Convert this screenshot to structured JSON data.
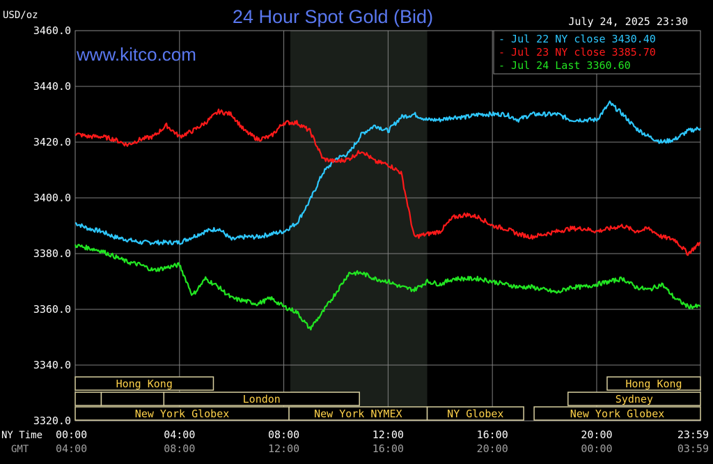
{
  "chart_data": {
    "type": "line",
    "title": "24 Hour Spot Gold (Bid)",
    "unit_label": "USD/oz",
    "watermark": "www.kitco.com",
    "timestamp": "July 24, 2025 23:30",
    "ylim": [
      3320,
      3460
    ],
    "y_ticks": [
      "3460.0",
      "3440.0",
      "3420.0",
      "3400.0",
      "3380.0",
      "3360.0",
      "3340.0",
      "3320.0"
    ],
    "x_tick_label_ny": "NY Time",
    "x_tick_label_gmt": "GMT",
    "x_ticks_ny": [
      "00:00",
      "04:00",
      "08:00",
      "12:00",
      "16:00",
      "20:00",
      "23:59"
    ],
    "x_ticks_gmt": [
      "04:00",
      "08:00",
      "12:00",
      "16:00",
      "20:00",
      "00:00",
      "03:59"
    ],
    "x_tick_hours": [
      0,
      4,
      8,
      12,
      16,
      20,
      23.98
    ],
    "xlim_hours": [
      0,
      23.98
    ],
    "shaded_session_hours": [
      8.25,
      13.5
    ],
    "colors": {
      "background": "#000000",
      "grid": "#808080",
      "title": "#5a78f0",
      "text": "#ffffff",
      "session_fill": "#1a1f1a",
      "session_text": "#ffd24a",
      "jul22": "#2ec8ff",
      "jul23": "#ff1a1a",
      "jul24": "#22e622"
    },
    "legend": {
      "placement": "top-right",
      "entries": [
        {
          "key": "jul22",
          "label": "Jul 22 NY close 3430.40"
        },
        {
          "key": "jul23",
          "label": "Jul 23 NY close 3385.70"
        },
        {
          "key": "jul24",
          "label": "Jul 24 Last 3360.60"
        }
      ]
    },
    "sessions": [
      {
        "label": "Hong Kong",
        "row": 0,
        "start": 0,
        "end": 5.3
      },
      {
        "label": "Hong Kong",
        "row": 0,
        "end": 23.98,
        "start": 20.4
      },
      {
        "label": "",
        "row": 1,
        "start": 0,
        "end": 1.0
      },
      {
        "label": "",
        "row": 1,
        "start": 1.0,
        "end": 3.4
      },
      {
        "label": "London",
        "row": 1,
        "start": 3.4,
        "end": 10.9
      },
      {
        "label": "Sydney",
        "row": 1,
        "start": 18.9,
        "end": 23.98
      },
      {
        "label": "New York Globex",
        "row": 2,
        "start": 0,
        "end": 8.2
      },
      {
        "label": "New York NYMEX",
        "row": 2,
        "start": 8.2,
        "end": 13.5
      },
      {
        "label": "NY Globex",
        "row": 2,
        "start": 13.5,
        "end": 17.2
      },
      {
        "label": "New York Globex",
        "row": 2,
        "start": 17.6,
        "end": 23.98
      }
    ],
    "series": [
      {
        "key": "jul22",
        "x": [
          0,
          0.5,
          1,
          1.5,
          2,
          2.5,
          3,
          3.5,
          4,
          4.5,
          5,
          5.5,
          6,
          6.5,
          7,
          7.5,
          8,
          8.5,
          9,
          9.5,
          10,
          10.5,
          11,
          11.5,
          12,
          12.5,
          13,
          13.5,
          14,
          14.5,
          15,
          15.5,
          16,
          16.5,
          17,
          17.5,
          18,
          18.5,
          19,
          19.5,
          20,
          20.5,
          21,
          21.5,
          22,
          22.5,
          23,
          23.5,
          23.98
        ],
        "values": [
          3391,
          3389,
          3388,
          3386,
          3385,
          3384,
          3384,
          3384,
          3384,
          3386,
          3388,
          3389,
          3385,
          3386,
          3386,
          3387,
          3388,
          3391,
          3399,
          3409,
          3414,
          3416,
          3423,
          3426,
          3424,
          3429,
          3430,
          3428,
          3428,
          3429,
          3429,
          3430,
          3430,
          3430,
          3428,
          3430,
          3430,
          3430,
          3428,
          3428,
          3428,
          3434,
          3430,
          3425,
          3422,
          3420,
          3421,
          3424,
          3425
        ]
      },
      {
        "key": "jul23",
        "x": [
          0,
          0.5,
          1,
          1.5,
          2,
          2.5,
          3,
          3.5,
          4,
          4.5,
          5,
          5.5,
          6,
          6.5,
          7,
          7.5,
          8,
          8.5,
          9,
          9.5,
          10,
          10.5,
          11,
          11.5,
          12,
          12.5,
          13,
          13.5,
          14,
          14.5,
          15,
          15.5,
          16,
          16.5,
          17,
          17.5,
          18,
          18.5,
          19,
          19.5,
          20,
          20.5,
          21,
          21.5,
          22,
          22.5,
          23,
          23.5,
          23.98
        ],
        "values": [
          3423,
          3422,
          3422,
          3421,
          3419,
          3421,
          3422,
          3426,
          3422,
          3424,
          3427,
          3431,
          3430,
          3424,
          3421,
          3422,
          3427,
          3427,
          3424,
          3414,
          3413,
          3414,
          3417,
          3413,
          3412,
          3409,
          3386,
          3387,
          3388,
          3393,
          3394,
          3393,
          3390,
          3389,
          3387,
          3386,
          3387,
          3388,
          3389,
          3389,
          3388,
          3389,
          3390,
          3388,
          3389,
          3386,
          3385,
          3380,
          3384
        ]
      },
      {
        "key": "jul24",
        "x": [
          0,
          0.5,
          1,
          1.5,
          2,
          2.5,
          3,
          3.5,
          4,
          4.5,
          5,
          5.5,
          6,
          6.5,
          7,
          7.5,
          8,
          8.5,
          9,
          9.5,
          10,
          10.5,
          11,
          11.5,
          12,
          12.5,
          13,
          13.5,
          14,
          14.5,
          15,
          15.5,
          16,
          16.5,
          17,
          17.5,
          18,
          18.5,
          19,
          19.5,
          20,
          20.5,
          21,
          21.5,
          22,
          22.5,
          23,
          23.5,
          23.98
        ],
        "values": [
          3383,
          3382,
          3381,
          3379,
          3377,
          3376,
          3374,
          3375,
          3376,
          3365,
          3371,
          3368,
          3364,
          3363,
          3362,
          3364,
          3361,
          3359,
          3353,
          3359,
          3366,
          3373,
          3373,
          3371,
          3370,
          3368,
          3367,
          3370,
          3369,
          3371,
          3371,
          3371,
          3370,
          3369,
          3368,
          3368,
          3367,
          3366,
          3368,
          3368,
          3369,
          3370,
          3371,
          3368,
          3367,
          3369,
          3364,
          3361,
          3361
        ]
      }
    ]
  }
}
